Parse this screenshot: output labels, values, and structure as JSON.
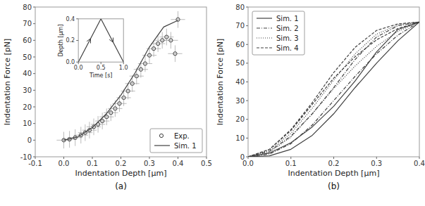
{
  "chart_data": [
    {
      "type": "scatter",
      "title": "(a)",
      "x_label": "Indentation Depth [μm]",
      "y_label": "Indentation Force [pN]",
      "xlim": [
        -0.1,
        0.5
      ],
      "ylim": [
        -10,
        80
      ],
      "xticks": [
        -0.1,
        {
          "value": 0.0,
          "label": "0.0"
        },
        0.1,
        0.2,
        0.3,
        0.4,
        0.5
      ],
      "yticks": [
        -10,
        0,
        10,
        20,
        30,
        40,
        50,
        60,
        70,
        80
      ],
      "grid": false,
      "legend": "lower right",
      "series": [
        {
          "name": "Exp.",
          "type": "scatter",
          "marker": "circle",
          "color": "#404040",
          "x": [
            0.0,
            0.02,
            0.04,
            0.06,
            0.075,
            0.09,
            0.105,
            0.12,
            0.135,
            0.15,
            0.165,
            0.18,
            0.195,
            0.21,
            0.225,
            0.24,
            0.255,
            0.27,
            0.285,
            0.3,
            0.315,
            0.33,
            0.345,
            0.36,
            0.375,
            0.39,
            0.4
          ],
          "values": [
            0.0,
            0.5,
            1.5,
            3.0,
            4.5,
            6.0,
            8.0,
            9.5,
            11.5,
            14.0,
            16.5,
            19.0,
            22.0,
            25.5,
            29.5,
            34.0,
            38.5,
            42.5,
            46.0,
            51.0,
            55.0,
            58.0,
            60.0,
            62.0,
            60.0,
            52.0,
            72.5
          ],
          "x_error": 0.025,
          "error": 5.0
        },
        {
          "name": "Sim. 1",
          "type": "line",
          "line_style": "solid",
          "color": "#404040",
          "x": [
            0.0,
            0.05,
            0.1,
            0.15,
            0.2,
            0.25,
            0.3,
            0.35,
            0.4
          ],
          "values": [
            0.0,
            2.0,
            7.5,
            16.0,
            27.0,
            40.5,
            56.0,
            68.0,
            72.0
          ]
        }
      ]
    },
    {
      "type": "line",
      "x_label": "Time [s]",
      "y_label": "Depth [μm]",
      "xlim": [
        0,
        1
      ],
      "ylim": [
        0.0,
        0.4
      ],
      "xticks": [
        {
          "value": 0,
          "label": "0.0"
        },
        0.5,
        {
          "value": 1,
          "label": "1.0"
        }
      ],
      "yticks": [
        {
          "value": 0.0,
          "label": "0.0"
        },
        0.2,
        0.4
      ],
      "grid": false,
      "series": [
        {
          "type": "line",
          "line_style": "solid",
          "color": "#404040",
          "x": [
            0,
            0.5,
            1.0
          ],
          "values": [
            0.0,
            0.4,
            0.0
          ]
        }
      ]
    },
    {
      "type": "line",
      "title": "(b)",
      "x_label": "Indentation Depth [μm]",
      "y_label": "Indentation Force [pN]",
      "xlim": [
        0.0,
        0.4
      ],
      "ylim": [
        0,
        80
      ],
      "xticks": [
        {
          "value": 0.0,
          "label": "0.0"
        },
        0.1,
        0.2,
        0.3,
        0.4
      ],
      "yticks": [
        0,
        10,
        20,
        30,
        40,
        50,
        60,
        70,
        80
      ],
      "grid": false,
      "legend": "upper left",
      "series": [
        {
          "name": "Sim. 1",
          "line_style": "solid",
          "color": "#404040",
          "x": [
            0.0,
            0.05,
            0.1,
            0.15,
            0.2,
            0.25,
            0.3,
            0.35,
            0.4,
            0.4,
            0.35,
            0.3,
            0.25,
            0.2,
            0.15,
            0.1,
            0.05,
            0.0
          ],
          "values": [
            0.0,
            2.0,
            7.5,
            16.0,
            27.0,
            40.5,
            56.0,
            68.0,
            72.0,
            72.0,
            62.0,
            50.0,
            37.0,
            23.0,
            11.5,
            4.0,
            0.5,
            0.0
          ]
        },
        {
          "name": "Sim. 2",
          "line_style": "dashdot",
          "color": "#404040",
          "x": [
            0.0,
            0.05,
            0.1,
            0.15,
            0.2,
            0.25,
            0.3,
            0.35,
            0.4,
            0.4,
            0.35,
            0.3,
            0.25,
            0.2,
            0.15,
            0.1,
            0.05,
            0.0
          ],
          "values": [
            0.0,
            3.0,
            11.0,
            23.0,
            37.0,
            52.0,
            64.0,
            70.0,
            72.0,
            72.0,
            65.0,
            55.0,
            43.0,
            30.0,
            17.0,
            7.0,
            1.5,
            0.0
          ]
        },
        {
          "name": "Sim. 3",
          "line_style": "dotted",
          "color": "#404040",
          "x": [
            0.0,
            0.05,
            0.1,
            0.15,
            0.2,
            0.25,
            0.3,
            0.35,
            0.4,
            0.4,
            0.35,
            0.3,
            0.25,
            0.2,
            0.15,
            0.1,
            0.05,
            0.0
          ],
          "values": [
            0.0,
            3.5,
            12.5,
            26.0,
            41.0,
            55.0,
            65.5,
            70.5,
            72.0,
            72.0,
            67.0,
            59.0,
            48.5,
            36.5,
            23.0,
            10.5,
            2.5,
            0.0
          ]
        },
        {
          "name": "Sim. 4",
          "line_style": "dashed",
          "color": "#404040",
          "x": [
            0.0,
            0.05,
            0.1,
            0.15,
            0.2,
            0.25,
            0.3,
            0.35,
            0.4,
            0.4,
            0.35,
            0.3,
            0.25,
            0.2,
            0.15,
            0.1,
            0.05,
            0.0
          ],
          "values": [
            0.0,
            4.0,
            14.5,
            29.0,
            45.0,
            58.5,
            67.5,
            71.0,
            72.0,
            72.0,
            68.5,
            62.5,
            53.5,
            42.0,
            28.0,
            14.0,
            4.0,
            0.0
          ]
        }
      ]
    }
  ]
}
